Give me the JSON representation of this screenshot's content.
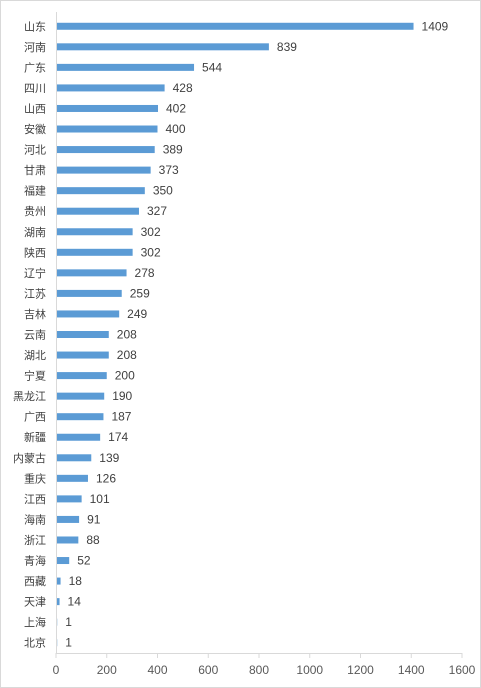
{
  "chart_data": {
    "type": "bar",
    "orientation": "horizontal",
    "title": "",
    "xlabel": "",
    "ylabel": "",
    "categories": [
      "山东",
      "河南",
      "广东",
      "四川",
      "山西",
      "安徽",
      "河北",
      "甘肃",
      "福建",
      "贵州",
      "湖南",
      "陕西",
      "辽宁",
      "江苏",
      "吉林",
      "云南",
      "湖北",
      "宁夏",
      "黑龙江",
      "广西",
      "新疆",
      "内蒙古",
      "重庆",
      "江西",
      "海南",
      "浙江",
      "青海",
      "西藏",
      "天津",
      "上海",
      "北京"
    ],
    "values": [
      1409,
      839,
      544,
      428,
      402,
      400,
      389,
      373,
      350,
      327,
      302,
      302,
      278,
      259,
      249,
      208,
      208,
      200,
      190,
      187,
      174,
      139,
      126,
      101,
      91,
      88,
      52,
      18,
      14,
      1,
      1
    ],
    "xlim": [
      0,
      1600
    ],
    "xticks": [
      "0",
      "200",
      "400",
      "600",
      "800",
      "1000",
      "1200",
      "1400",
      "1600"
    ],
    "grid": false,
    "legend": "none",
    "colors": {
      "bar": "#5b9bd5",
      "axis": "#d9d9d9",
      "text": "#404040"
    }
  }
}
